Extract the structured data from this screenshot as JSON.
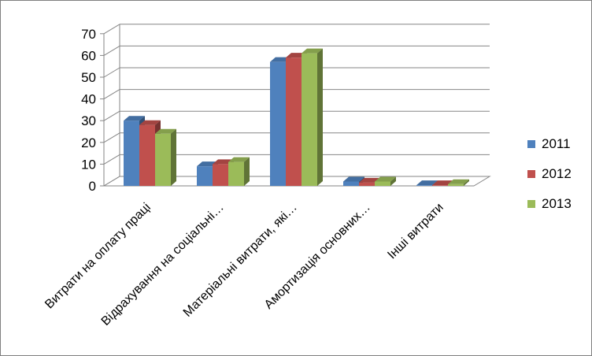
{
  "chart_data": {
    "type": "bar",
    "title": "",
    "xlabel": "",
    "ylabel": "",
    "ylim": [
      0,
      70
    ],
    "yticks": [
      0,
      10,
      20,
      30,
      40,
      50,
      60,
      70
    ],
    "grid": true,
    "legend_position": "right",
    "categories": [
      "Витрати на оплату праці",
      "Відрахування на соціальні…",
      "Матеріальні витрати, які…",
      "Амортизація основних…",
      "Інші витрати"
    ],
    "series": [
      {
        "name": "2011",
        "color": "#4f81bd",
        "values": [
          30,
          9,
          57,
          2,
          0.3
        ]
      },
      {
        "name": "2012",
        "color": "#c0504d",
        "values": [
          28,
          10,
          59,
          1.5,
          0.3
        ]
      },
      {
        "name": "2013",
        "color": "#9bbb59",
        "values": [
          24,
          11,
          61,
          2,
          0.8
        ]
      }
    ]
  }
}
